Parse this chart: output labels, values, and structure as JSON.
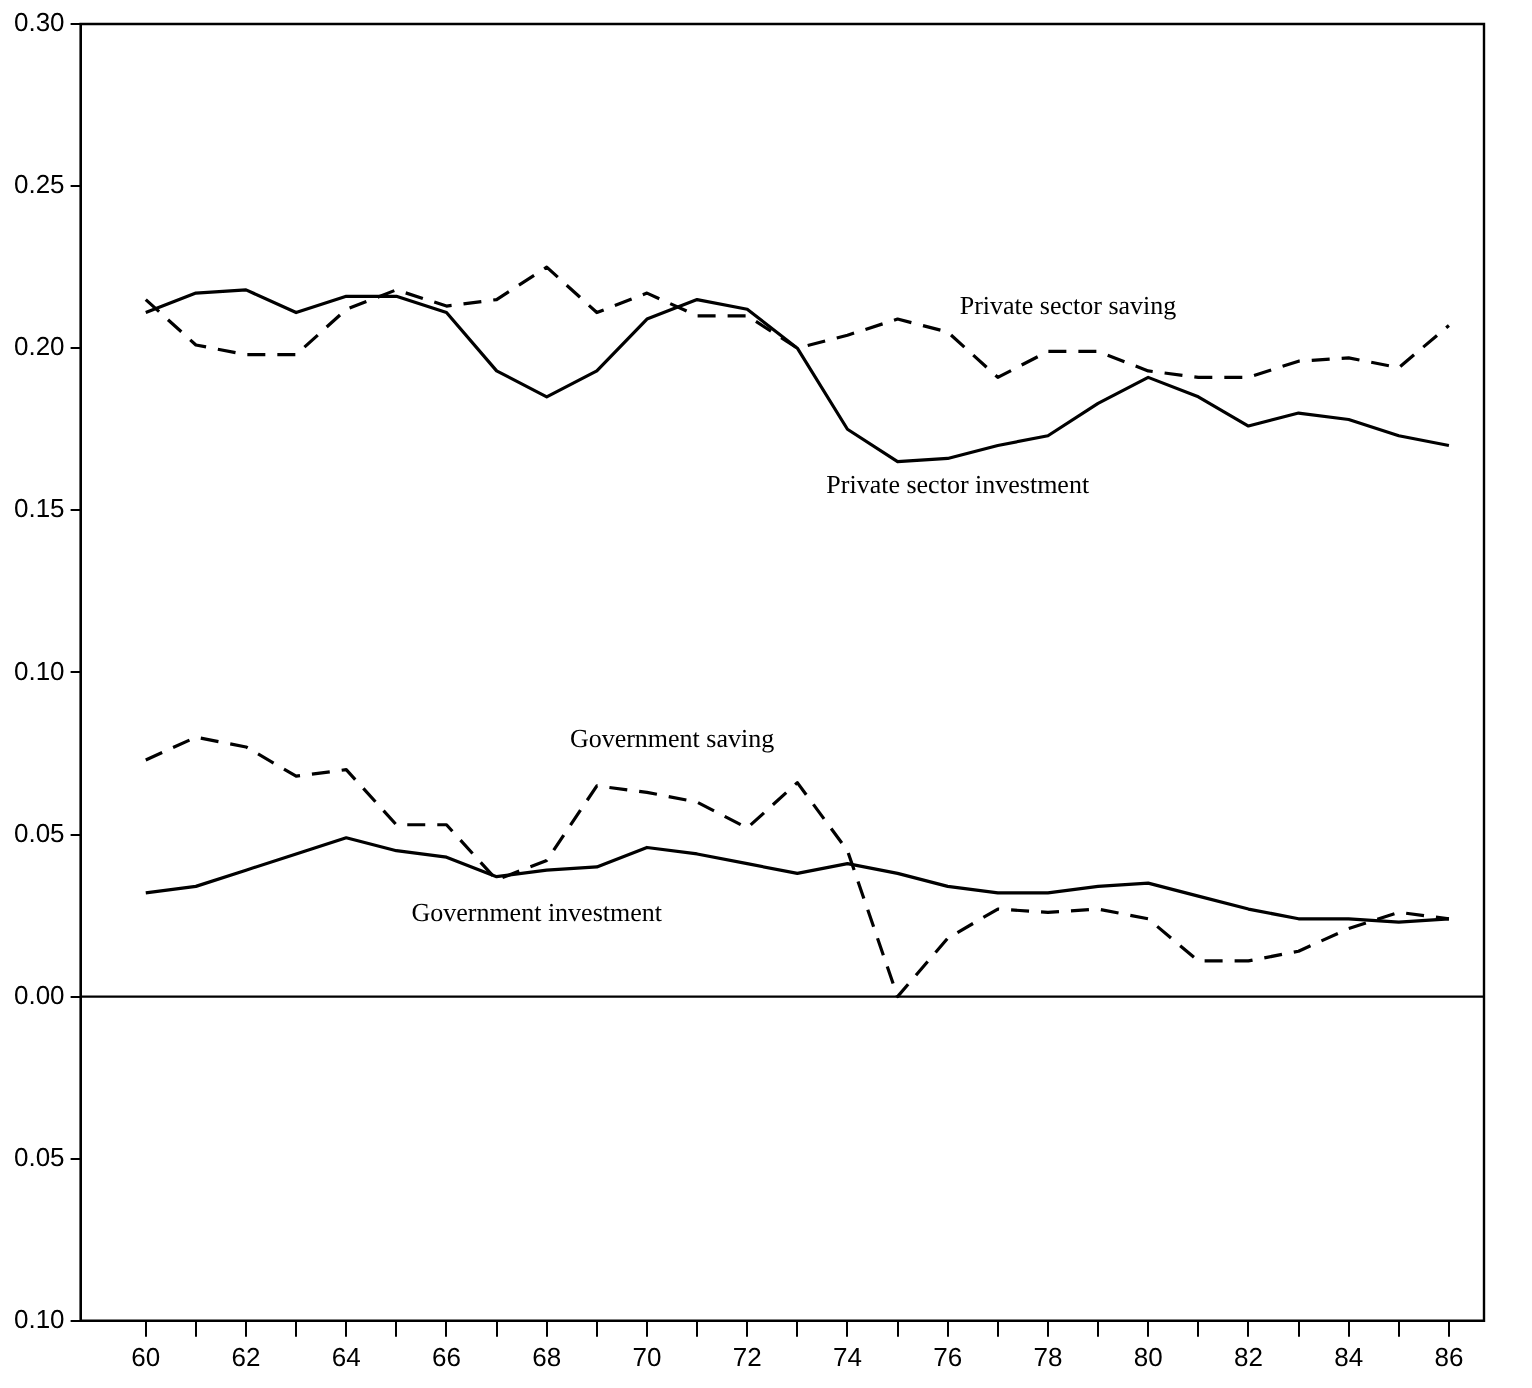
{
  "chart_data": {
    "type": "line",
    "x": [
      60,
      61,
      62,
      63,
      64,
      65,
      66,
      67,
      68,
      69,
      70,
      71,
      72,
      73,
      74,
      75,
      76,
      77,
      78,
      79,
      80,
      81,
      82,
      83,
      84,
      85,
      86
    ],
    "series": [
      {
        "name": "Private sector saving",
        "color": "#000000",
        "line_style": "dashed",
        "values": [
          0.215,
          0.201,
          0.198,
          0.198,
          0.212,
          0.218,
          0.213,
          0.215,
          0.225,
          0.211,
          0.217,
          0.21,
          0.21,
          0.2,
          0.204,
          0.209,
          0.205,
          0.191,
          0.199,
          0.199,
          0.193,
          0.191,
          0.191,
          0.196,
          0.197,
          0.194,
          0.207
        ]
      },
      {
        "name": "Private sector investment",
        "color": "#000000",
        "line_style": "solid",
        "values": [
          0.211,
          0.217,
          0.218,
          0.211,
          0.216,
          0.216,
          0.211,
          0.193,
          0.185,
          0.193,
          0.209,
          0.215,
          0.212,
          0.2,
          0.175,
          0.165,
          0.166,
          0.17,
          0.173,
          0.183,
          0.191,
          0.185,
          0.176,
          0.18,
          0.178,
          0.173,
          0.17
        ]
      },
      {
        "name": "Government saving",
        "color": "#000000",
        "line_style": "dashed",
        "values": [
          0.073,
          0.08,
          0.077,
          0.068,
          0.07,
          0.053,
          0.053,
          0.036,
          0.042,
          0.065,
          0.063,
          0.06,
          0.052,
          0.066,
          0.045,
          0.0,
          0.018,
          0.027,
          0.026,
          0.027,
          0.024,
          0.011,
          0.011,
          0.014,
          0.021,
          0.026,
          0.024
        ]
      },
      {
        "name": "Government investment",
        "color": "#000000",
        "line_style": "solid",
        "values": [
          0.032,
          0.034,
          0.039,
          0.044,
          0.049,
          0.045,
          0.043,
          0.037,
          0.039,
          0.04,
          0.046,
          0.044,
          0.041,
          0.038,
          0.041,
          0.038,
          0.034,
          0.032,
          0.032,
          0.034,
          0.035,
          0.031,
          0.027,
          0.024,
          0.024,
          0.023,
          0.024
        ]
      }
    ],
    "xlim": [
      58.7,
      86.7
    ],
    "xticks": [
      60,
      {
        "value": 61,
        "label": null
      },
      62,
      {
        "value": 63,
        "label": null
      },
      64,
      {
        "value": 65,
        "label": null
      },
      66,
      {
        "value": 67,
        "label": null
      },
      68,
      {
        "value": 69,
        "label": null
      },
      70,
      {
        "value": 71,
        "label": null
      },
      72,
      {
        "value": 73,
        "label": null
      },
      74,
      {
        "value": 75,
        "label": null
      },
      76,
      {
        "value": 77,
        "label": null
      },
      78,
      {
        "value": 79,
        "label": null
      },
      80,
      {
        "value": 81,
        "label": null
      },
      82,
      {
        "value": 83,
        "label": null
      },
      84,
      {
        "value": 85,
        "label": null
      },
      86
    ],
    "ylim": [
      -0.1,
      0.3
    ],
    "yticks": [
      {
        "value": -0.1,
        "label": "0.10"
      },
      {
        "value": -0.05,
        "label": "0.05"
      },
      {
        "value": 0,
        "label": "0.00"
      },
      {
        "value": 0.05,
        "label": "0.05"
      },
      {
        "value": 0.1,
        "label": "0.10"
      },
      {
        "value": 0.15,
        "label": "0.15"
      },
      {
        "value": 0.2,
        "label": "0.20"
      },
      {
        "value": 0.25,
        "label": "0.25"
      },
      {
        "value": 0.3,
        "label": "0.30"
      }
    ],
    "ref_lines": [
      {
        "axis": "y",
        "value": 0,
        "color": "#000000",
        "line_style": "solid"
      }
    ],
    "grid": false,
    "legend": false,
    "marker": "none"
  }
}
